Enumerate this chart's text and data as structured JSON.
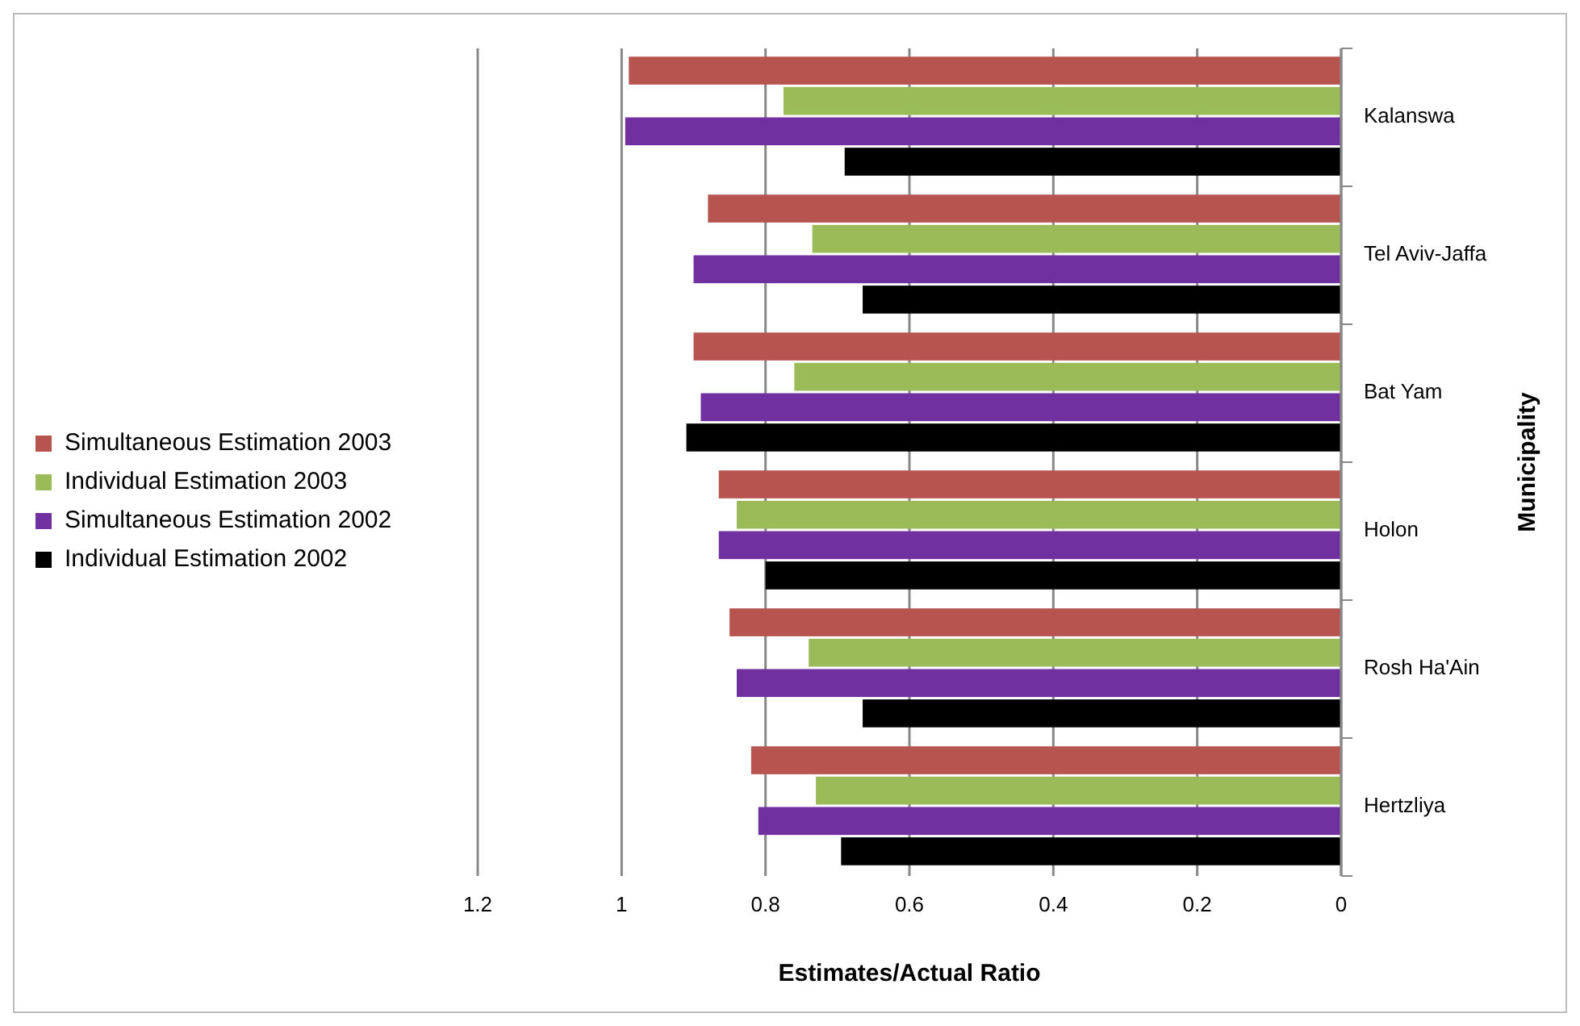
{
  "chart_data": {
    "type": "bar",
    "orientation": "horizontal",
    "xlabel": "Estimates/Actual Ratio",
    "ylabel": "Municipality",
    "categories": [
      "Kalanswa",
      "Tel Aviv-Jaffa",
      "Bat Yam",
      "Holon",
      "Rosh Ha'Ain",
      "Hertzliya"
    ],
    "series": [
      {
        "name": "Simultaneous Estimation 2003",
        "color": "#b85450",
        "values": [
          0.99,
          0.88,
          0.9,
          0.865,
          0.85,
          0.82
        ]
      },
      {
        "name": "Individual Estimation 2003",
        "color": "#9bbb59",
        "values": [
          0.775,
          0.735,
          0.76,
          0.84,
          0.74,
          0.73
        ]
      },
      {
        "name": "Simultaneous Estimation 2002",
        "color": "#7030a0",
        "values": [
          0.995,
          0.9,
          0.89,
          0.865,
          0.84,
          0.81
        ]
      },
      {
        "name": "Individual Estimation 2002",
        "color": "#000000",
        "values": [
          0.69,
          0.665,
          0.91,
          0.8,
          0.665,
          0.695
        ]
      }
    ],
    "xlim": [
      1.2,
      0
    ],
    "xticks": [
      1.2,
      1,
      0.8,
      0.6,
      0.4,
      0.2,
      0
    ],
    "grid": "x",
    "legend": "left"
  }
}
